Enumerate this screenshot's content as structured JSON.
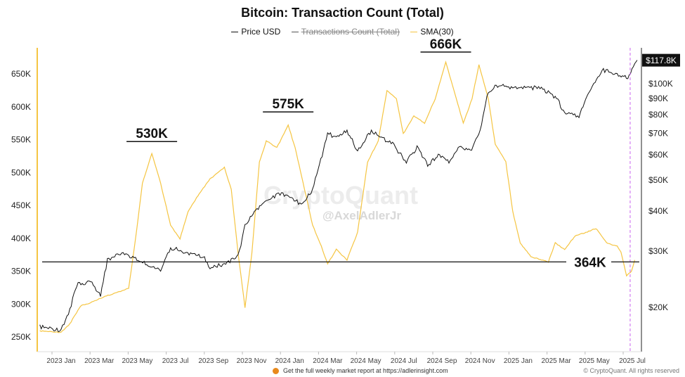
{
  "chart_data": {
    "type": "line",
    "title": "Bitcoin: Transaction Count (Total)",
    "legend": [
      {
        "name": "Price USD",
        "color": "#111111",
        "hidden": false
      },
      {
        "name": "Transactions Count (Total)",
        "color": "#555555",
        "hidden": true
      },
      {
        "name": "SMA(30)",
        "color": "#f5c542",
        "hidden": false
      }
    ],
    "legend_position": "top",
    "grid": false,
    "x_ticks": [
      "2023 Jan",
      "2023 Mar",
      "2023 May",
      "2023 Jul",
      "2023 Sep",
      "2023 Nov",
      "2024 Jan",
      "2024 Mar",
      "2024 May",
      "2024 Jul",
      "2024 Sep",
      "2024 Nov",
      "2025 Jan",
      "2025 Mar",
      "2025 May",
      "2025 Jul"
    ],
    "left_axis": {
      "ticks": [
        "250K",
        "300K",
        "350K",
        "400K",
        "450K",
        "500K",
        "550K",
        "600K",
        "650K"
      ],
      "tick_values": [
        250000,
        300000,
        350000,
        400000,
        450000,
        500000,
        550000,
        600000,
        650000
      ],
      "range": [
        240000,
        690000
      ]
    },
    "right_axis": {
      "scale": "log",
      "ticks": [
        "$20K",
        "$30K",
        "$40K",
        "$50K",
        "$60K",
        "$70K",
        "$80K",
        "$90K",
        "$100K"
      ],
      "tick_values": [
        20000,
        30000,
        40000,
        50000,
        60000,
        70000,
        80000,
        90000,
        100000
      ],
      "current_label": "$117.8K"
    },
    "series": [
      {
        "name": "SMA(30)",
        "axis": "left",
        "color": "#f5c542",
        "points": [
          [
            "2022-11-28",
            259000
          ],
          [
            "2023-01-01",
            257000
          ],
          [
            "2023-01-15",
            270000
          ],
          [
            "2023-02-01",
            297000
          ],
          [
            "2023-02-17",
            302000
          ],
          [
            "2023-03-10",
            311000
          ],
          [
            "2023-04-02",
            318000
          ],
          [
            "2023-04-19",
            324000
          ],
          [
            "2023-04-30",
            399000
          ],
          [
            "2023-05-11",
            484000
          ],
          [
            "2023-05-26",
            529000
          ],
          [
            "2023-06-09",
            484000
          ],
          [
            "2023-06-25",
            420000
          ],
          [
            "2023-07-10",
            399000
          ],
          [
            "2023-07-23",
            441000
          ],
          [
            "2023-08-10",
            468000
          ],
          [
            "2023-08-27",
            490000
          ],
          [
            "2023-09-19",
            508000
          ],
          [
            "2023-09-30",
            474000
          ],
          [
            "2023-10-11",
            377000
          ],
          [
            "2023-10-22",
            295000
          ],
          [
            "2023-11-02",
            377000
          ],
          [
            "2023-11-14",
            516000
          ],
          [
            "2023-11-25",
            548000
          ],
          [
            "2023-12-12",
            538000
          ],
          [
            "2023-12-30",
            572000
          ],
          [
            "2024-01-10",
            538000
          ],
          [
            "2024-01-23",
            484000
          ],
          [
            "2024-02-07",
            420000
          ],
          [
            "2024-02-21",
            388000
          ],
          [
            "2024-03-02",
            361000
          ],
          [
            "2024-03-16",
            383000
          ],
          [
            "2024-04-02",
            367000
          ],
          [
            "2024-04-19",
            409000
          ],
          [
            "2024-05-05",
            516000
          ],
          [
            "2024-05-22",
            548000
          ],
          [
            "2024-06-05",
            625000
          ],
          [
            "2024-06-20",
            612000
          ],
          [
            "2024-07-01",
            559000
          ],
          [
            "2024-07-18",
            586000
          ],
          [
            "2024-08-04",
            575000
          ],
          [
            "2024-08-21",
            612000
          ],
          [
            "2024-09-07",
            668000
          ],
          [
            "2024-09-22",
            618000
          ],
          [
            "2024-10-05",
            575000
          ],
          [
            "2024-10-19",
            612000
          ],
          [
            "2024-10-30",
            664000
          ],
          [
            "2024-11-14",
            612000
          ],
          [
            "2024-11-25",
            543000
          ],
          [
            "2024-12-12",
            516000
          ],
          [
            "2024-12-23",
            441000
          ],
          [
            "2025-01-04",
            393000
          ],
          [
            "2025-01-21",
            372000
          ],
          [
            "2025-02-07",
            367000
          ],
          [
            "2025-02-18",
            364000
          ],
          [
            "2025-03-01",
            393000
          ],
          [
            "2025-03-16",
            383000
          ],
          [
            "2025-04-02",
            404000
          ],
          [
            "2025-04-19",
            409000
          ],
          [
            "2025-05-05",
            415000
          ],
          [
            "2025-05-22",
            393000
          ],
          [
            "2025-06-08",
            388000
          ],
          [
            "2025-06-14",
            379000
          ],
          [
            "2025-06-23",
            343000
          ],
          [
            "2025-07-01",
            350000
          ],
          [
            "2025-07-06",
            367000
          ]
        ]
      },
      {
        "name": "Price USD",
        "axis": "right",
        "color": "#111111",
        "points": [
          [
            "2022-11-28",
            17300
          ],
          [
            "2023-01-01",
            16900
          ],
          [
            "2023-01-15",
            19600
          ],
          [
            "2023-01-26",
            23400
          ],
          [
            "2023-02-17",
            24000
          ],
          [
            "2023-03-05",
            21700
          ],
          [
            "2023-03-16",
            28000
          ],
          [
            "2023-04-08",
            29600
          ],
          [
            "2023-04-30",
            28200
          ],
          [
            "2023-05-16",
            27200
          ],
          [
            "2023-06-09",
            25900
          ],
          [
            "2023-06-25",
            30600
          ],
          [
            "2023-07-18",
            29600
          ],
          [
            "2023-08-16",
            28700
          ],
          [
            "2023-08-27",
            26600
          ],
          [
            "2023-09-19",
            27200
          ],
          [
            "2023-10-11",
            28700
          ],
          [
            "2023-10-22",
            36000
          ],
          [
            "2023-11-08",
            39800
          ],
          [
            "2023-11-25",
            43000
          ],
          [
            "2023-12-17",
            45200
          ],
          [
            "2024-01-04",
            43600
          ],
          [
            "2024-01-20",
            41900
          ],
          [
            "2024-02-07",
            46300
          ],
          [
            "2024-02-18",
            55300
          ],
          [
            "2024-03-02",
            69500
          ],
          [
            "2024-03-16",
            67700
          ],
          [
            "2024-04-02",
            71200
          ],
          [
            "2024-04-19",
            61200
          ],
          [
            "2024-05-11",
            71200
          ],
          [
            "2024-05-27",
            67700
          ],
          [
            "2024-06-14",
            64400
          ],
          [
            "2024-07-06",
            56800
          ],
          [
            "2024-07-23",
            62800
          ],
          [
            "2024-08-09",
            55300
          ],
          [
            "2024-08-26",
            59700
          ],
          [
            "2024-09-12",
            56800
          ],
          [
            "2024-09-29",
            62800
          ],
          [
            "2024-10-16",
            61200
          ],
          [
            "2024-11-01",
            71200
          ],
          [
            "2024-11-14",
            94100
          ],
          [
            "2024-12-01",
            99000
          ],
          [
            "2024-12-23",
            96500
          ],
          [
            "2025-01-15",
            96500
          ],
          [
            "2025-02-07",
            96500
          ],
          [
            "2025-03-03",
            89500
          ],
          [
            "2025-03-16",
            80900
          ],
          [
            "2025-04-08",
            79000
          ],
          [
            "2025-04-25",
            94000
          ],
          [
            "2025-05-17",
            109500
          ],
          [
            "2025-06-08",
            106800
          ],
          [
            "2025-06-25",
            104000
          ],
          [
            "2025-07-06",
            115000
          ],
          [
            "2025-07-10",
            117800
          ]
        ]
      }
    ],
    "annotations": [
      {
        "label": "530K",
        "value": 530000,
        "date": "2023-05-26"
      },
      {
        "label": "575K",
        "value": 575000,
        "date": "2023-12-30"
      },
      {
        "label": "666K",
        "value": 666000,
        "date": "2024-09-07"
      },
      {
        "label": "364K",
        "value": 364000,
        "type": "horizontal-line"
      }
    ],
    "marker_line": {
      "date": "2025-07-01",
      "color": "#d27cf2",
      "style": "dashed"
    }
  },
  "watermark": {
    "brand": "CryptoQuant",
    "handle": "@AxelAdlerJr"
  },
  "footer": {
    "text": "Get the full weekly market report at https://adlerinsight.com",
    "copyright": "© CryptoQuant. All rights reserved"
  }
}
